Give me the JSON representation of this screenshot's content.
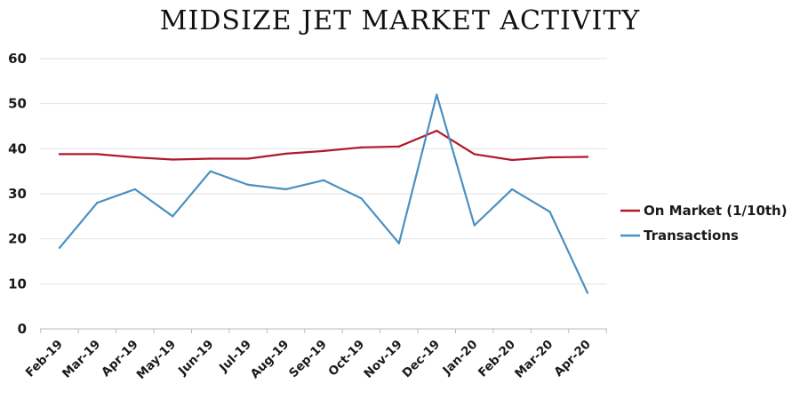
{
  "chart_data": {
    "type": "line",
    "title": "MIDSIZE JET MARKET ACTIVITY",
    "categories": [
      "Feb-19",
      "Mar-19",
      "Apr-19",
      "May-19",
      "Jun-19",
      "Jul-19",
      "Aug-19",
      "Sep-19",
      "Oct-19",
      "Nov-19",
      "Dec-19",
      "Jan-20",
      "Feb-20",
      "Mar-20",
      "Apr-20"
    ],
    "series": [
      {
        "name": "On Market (1/10th)",
        "color": "#b0192a",
        "values": [
          38.8,
          38.8,
          38.1,
          37.6,
          37.8,
          37.8,
          38.9,
          39.5,
          40.3,
          40.5,
          44.0,
          38.8,
          37.5,
          38.1,
          38.2
        ]
      },
      {
        "name": "Transactions",
        "color": "#4a90c0",
        "values": [
          18,
          28,
          31,
          25,
          35,
          32,
          31,
          33,
          29,
          19,
          52,
          23,
          31,
          26,
          8
        ]
      }
    ],
    "ylim": [
      0,
      60
    ],
    "yticks": [
      "0",
      "10",
      "20",
      "30",
      "40",
      "50",
      "60"
    ],
    "grid": true,
    "legend_position": "right"
  }
}
